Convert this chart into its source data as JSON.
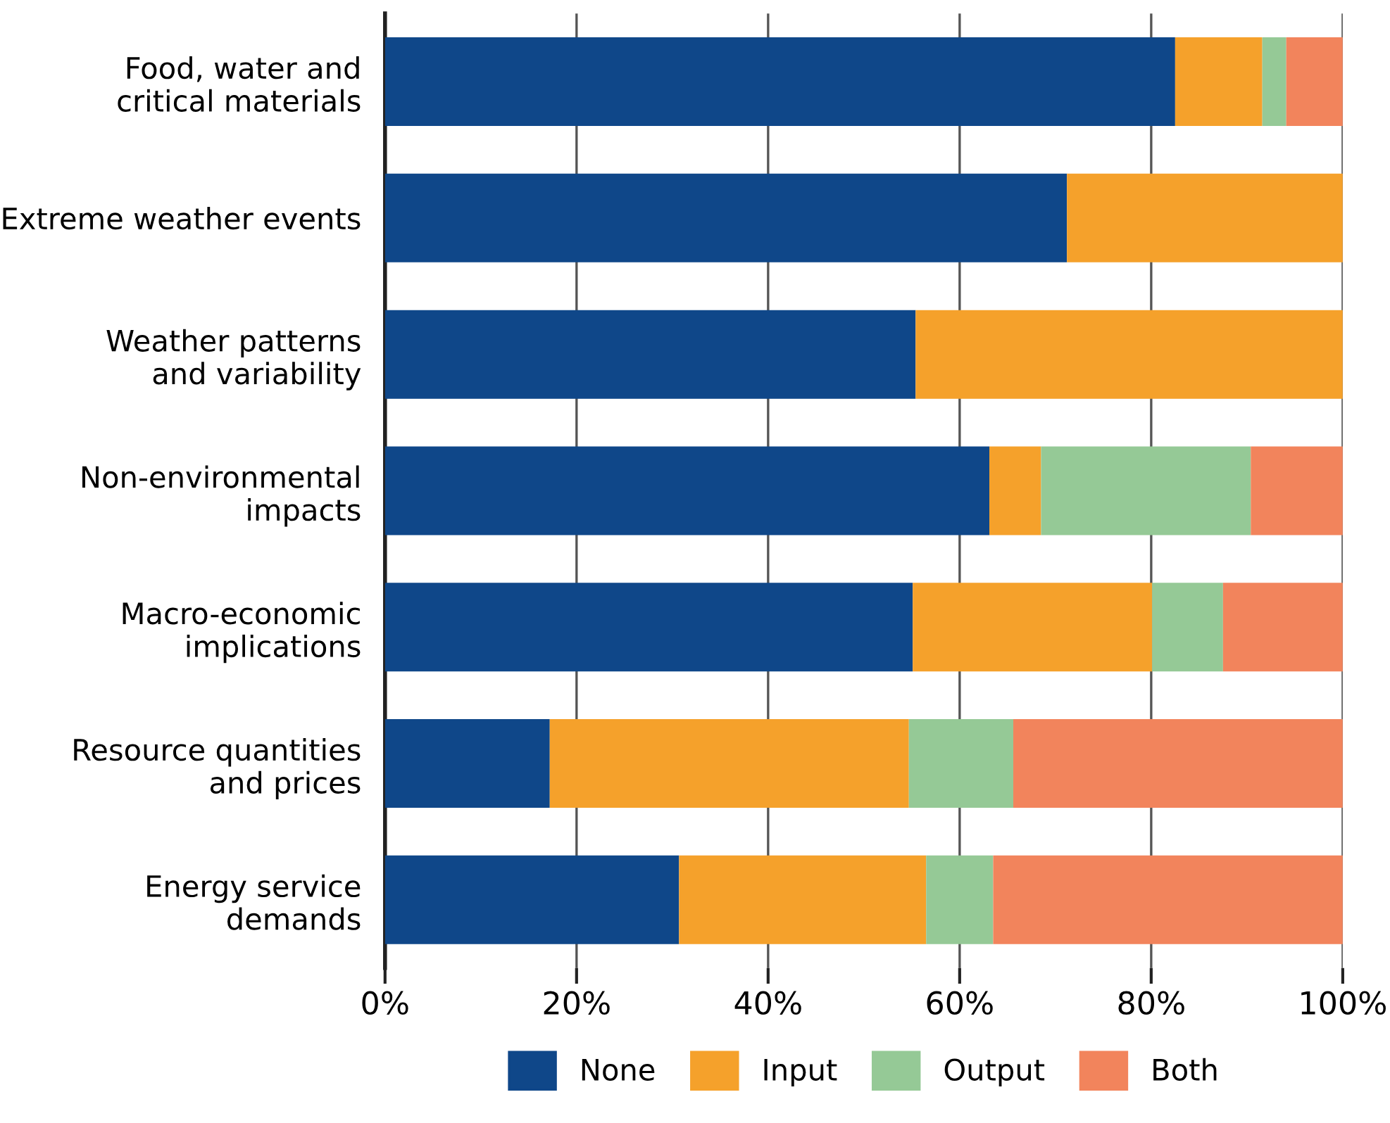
{
  "chart_data": {
    "type": "bar",
    "orientation": "horizontal",
    "stacked": true,
    "categories": [
      "Food, water and\ncritical materials",
      "Extreme weather events",
      "Weather patterns\nand variability",
      "Non-environmental\nimpacts",
      "Macro-economic\nimplications",
      "Resource quantities\nand prices",
      "Energy service\ndemands"
    ],
    "series": [
      {
        "name": "None",
        "color": "#0f4789",
        "values": [
          82.5,
          71.2,
          55.4,
          63.1,
          55.1,
          17.2,
          30.7
        ]
      },
      {
        "name": "Input",
        "color": "#f5a12b",
        "values": [
          9.1,
          28.8,
          44.6,
          5.4,
          25.0,
          37.5,
          25.8
        ]
      },
      {
        "name": "Output",
        "color": "#95c996",
        "values": [
          2.5,
          0,
          0,
          21.9,
          7.4,
          10.9,
          7.0
        ]
      },
      {
        "name": "Both",
        "color": "#f2845c",
        "values": [
          5.9,
          0,
          0,
          9.6,
          12.5,
          34.4,
          36.5
        ]
      }
    ],
    "xlim": [
      0,
      100
    ],
    "xticks": [
      {
        "value": 0,
        "label": "0%"
      },
      {
        "value": 20,
        "label": "20%"
      },
      {
        "value": 40,
        "label": "40%"
      },
      {
        "value": 60,
        "label": "60%"
      },
      {
        "value": 80,
        "label": "80%"
      },
      {
        "value": 100,
        "label": "100%"
      }
    ],
    "grid": "x",
    "legend": "bottom"
  }
}
